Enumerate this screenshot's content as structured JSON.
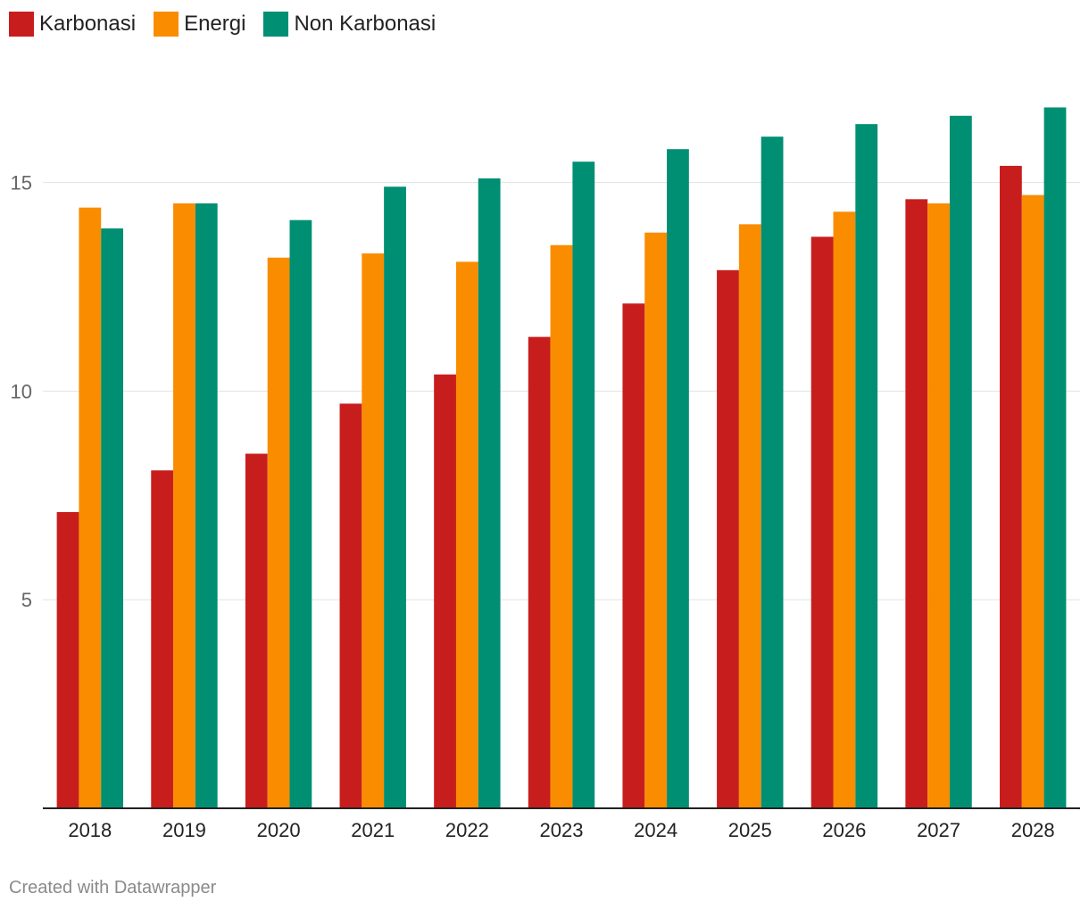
{
  "chart_data": {
    "type": "bar",
    "title": "",
    "xlabel": "",
    "ylabel": "",
    "categories": [
      "2018",
      "2019",
      "2020",
      "2021",
      "2022",
      "2023",
      "2024",
      "2025",
      "2026",
      "2027",
      "2028"
    ],
    "series": [
      {
        "name": "Karbonasi",
        "color": "#c71e1d",
        "values": [
          7.1,
          8.1,
          8.5,
          9.7,
          10.4,
          11.3,
          12.1,
          12.9,
          13.7,
          14.6,
          15.4
        ]
      },
      {
        "name": "Energi",
        "color": "#fa8c00",
        "values": [
          14.4,
          14.5,
          13.2,
          13.3,
          13.1,
          13.5,
          13.8,
          14.0,
          14.3,
          14.5,
          14.7
        ]
      },
      {
        "name": "Non Karbonasi",
        "color": "#008f73",
        "values": [
          13.9,
          14.5,
          14.1,
          14.9,
          15.1,
          15.5,
          15.8,
          16.1,
          16.4,
          16.6,
          16.8
        ]
      }
    ],
    "yticks": [
      5,
      10,
      15
    ],
    "ylim": [
      0,
      17.9
    ],
    "grid": true,
    "legend_position": "top-left"
  },
  "footer": {
    "credit": "Created with Datawrapper"
  }
}
